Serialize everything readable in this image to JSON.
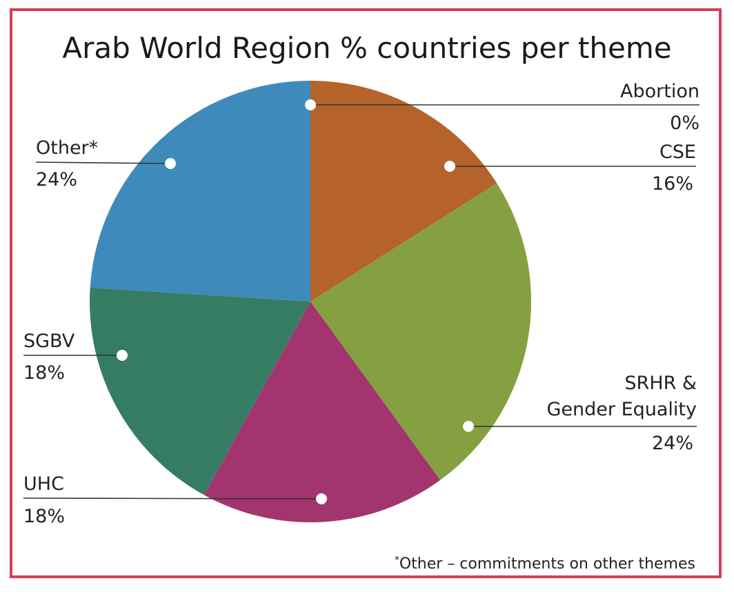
{
  "chart_data": {
    "type": "pie",
    "title": "Arab World Region % countries per theme",
    "slices": [
      {
        "name": "Abortion",
        "label": "0%",
        "value": 0,
        "color": "#b5632a"
      },
      {
        "name": "CSE",
        "label": "16%",
        "value": 16,
        "color": "#b5632a"
      },
      {
        "name": "SRHR &",
        "name2": "Gender Equality",
        "label": "24%",
        "value": 24,
        "color": "#85a040"
      },
      {
        "name": "UHC",
        "label": "18%",
        "value": 18,
        "color": "#a3356e"
      },
      {
        "name": "SGBV",
        "label": "18%",
        "value": 18,
        "color": "#357c63"
      },
      {
        "name": "Other*",
        "label": "24%",
        "value": 24,
        "color": "#3e8bbb"
      }
    ],
    "footnote": {
      "marker": "*",
      "text": "Other – commitments on other themes"
    }
  }
}
